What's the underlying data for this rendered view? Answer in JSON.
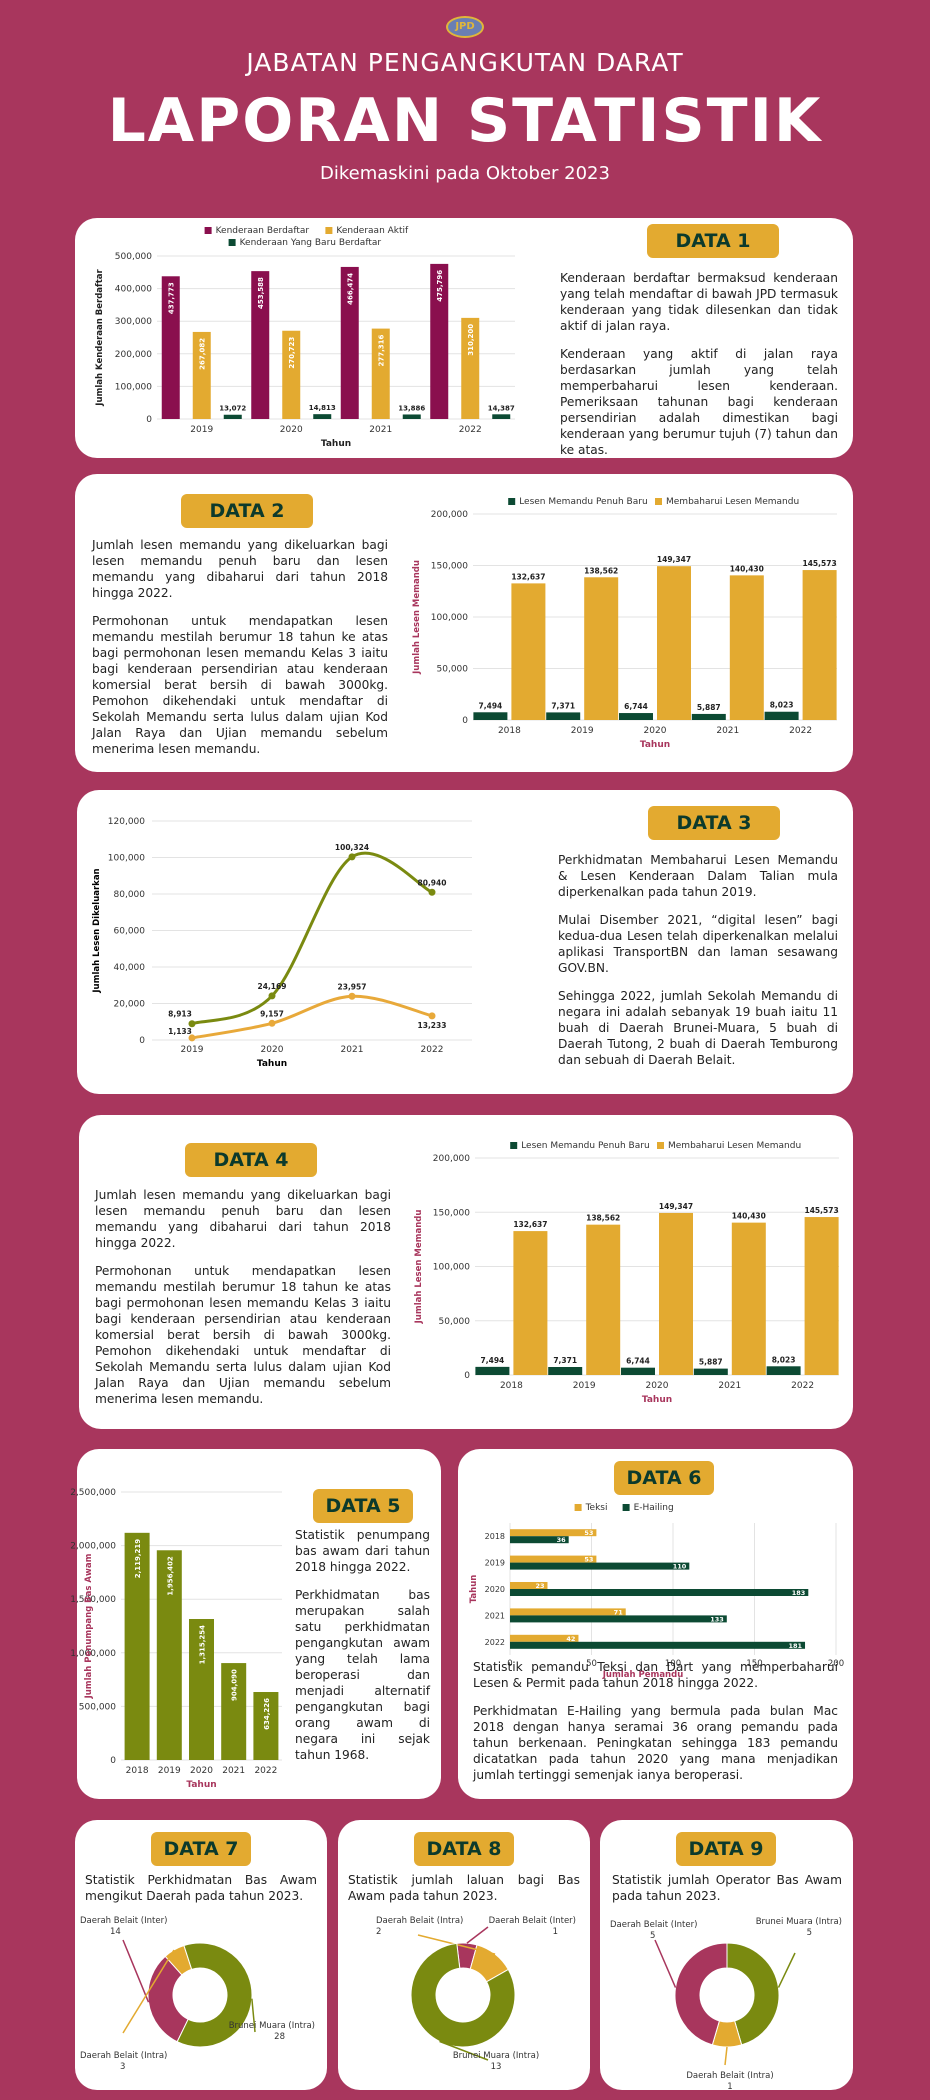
{
  "header": {
    "logo_text": "JPD",
    "supertitle": "JABATAN PENGANGKUTAN DARAT",
    "title": "LAPORAN STATISTIK",
    "updated": "Dikemaskini pada Oktober 2023"
  },
  "colors": {
    "background": "#a8365d",
    "maroon": "#8a0f4e",
    "gold": "#e3aa30",
    "green": "#0c4a33",
    "olive": "#7a8a10"
  },
  "sections": {
    "d1": {
      "label": "DATA 1",
      "paras": [
        "Kenderaan berdaftar bermaksud kenderaan yang telah mendaftar di bawah JPD termasuk kenderaan yang tidak dilesenkan dan tidak aktif di jalan raya.",
        "Kenderaan yang aktif di jalan raya berdasarkan jumlah yang telah memperbaharui lesen kenderaan. Pemeriksaan tahunan bagi kenderaan persendirian adalah dimestikan bagi kenderaan yang berumur tujuh (7) tahun dan ke atas."
      ]
    },
    "d2": {
      "label": "DATA 2",
      "paras": [
        "Jumlah lesen memandu yang dikeluarkan bagi lesen memandu penuh baru dan lesen memandu yang dibaharui dari tahun 2018 hingga 2022.",
        "Permohonan untuk mendapatkan lesen memandu mestilah berumur 18 tahun ke atas bagi permohonan lesen memandu Kelas 3 iaitu bagi kenderaan persendirian atau kenderaan komersial berat bersih di bawah 3000kg. Pemohon dikehendaki untuk mendaftar di Sekolah Memandu serta lulus dalam ujian Kod Jalan Raya dan Ujian memandu sebelum menerima lesen memandu."
      ]
    },
    "d3": {
      "label": "DATA 3",
      "paras": [
        "Perkhidmatan Membaharui Lesen Memandu & Lesen Kenderaan Dalam Talian mula diperkenalkan pada tahun 2019.",
        "Mulai Disember 2021, “digital lesen” bagi kedua-dua Lesen telah diperkenalkan melalui aplikasi TransportBN dan laman sesawang GOV.BN.",
        "Sehingga 2022, jumlah Sekolah Memandu di negara ini adalah sebanyak 19 buah iaitu 11 buah di Daerah Brunei-Muara, 5 buah di Daerah Tutong, 2 buah di Daerah Temburong dan sebuah di Daerah Belait."
      ]
    },
    "d4": {
      "label": "DATA 4",
      "paras": [
        "Jumlah lesen memandu yang dikeluarkan bagi lesen memandu penuh baru dan lesen memandu yang dibaharui dari tahun 2018 hingga 2022.",
        "Permohonan untuk mendapatkan lesen memandu mestilah berumur 18 tahun ke atas bagi permohonan lesen memandu Kelas 3 iaitu bagi kenderaan persendirian atau kenderaan komersial berat bersih di bawah 3000kg. Pemohon dikehendaki untuk mendaftar di Sekolah Memandu serta lulus dalam ujian Kod Jalan Raya dan Ujian memandu sebelum menerima lesen memandu."
      ]
    },
    "d5": {
      "label": "DATA 5",
      "paras": [
        "Statistik penumpang bas awam dari tahun 2018 hingga 2022.",
        "Perkhidmatan bas merupakan salah satu perkhidmatan pengangkutan awam yang telah lama beroperasi dan menjadi alternatif pengangkutan bagi orang awam di negara ini sejak tahun 1968."
      ]
    },
    "d6": {
      "label": "DATA 6",
      "paras": [
        "Statistik pemandu Teksi dan Dart yang memperbaharui Lesen & Permit pada tahun 2018 hingga 2022.",
        "Perkhidmatan E-Hailing yang bermula pada bulan Mac 2018 dengan hanya seramai 36 orang pemandu pada tahun berkenaan. Peningkatan sehingga 183 pemandu dicatatkan pada tahun 2020 yang mana menjadikan jumlah tertinggi semenjak ianya beroperasi."
      ]
    },
    "d7": {
      "label": "DATA 7",
      "paras": [
        "Statistik Perkhidmatan Bas Awam mengikut Daerah pada tahun 2023."
      ]
    },
    "d8": {
      "label": "DATA 8",
      "paras": [
        "Statistik jumlah laluan bagi Bas Awam pada tahun 2023."
      ]
    },
    "d9": {
      "label": "DATA 9",
      "paras": [
        "Statistik jumlah Operator Bas Awam pada tahun 2023."
      ]
    }
  },
  "chart_data": [
    {
      "id": "data1",
      "type": "bar",
      "categories": [
        "2019",
        "2020",
        "2021",
        "2022"
      ],
      "series": [
        {
          "name": "Kenderaan Berdaftar",
          "color": "#8a0f4e",
          "values": [
            437773,
            453588,
            466474,
            475796
          ],
          "labels": [
            "437,773",
            "453,588",
            "466,474",
            "475,796"
          ]
        },
        {
          "name": "Kenderaan Aktif",
          "color": "#e3aa30",
          "values": [
            267082,
            270723,
            277316,
            310200
          ],
          "labels": [
            "267,082",
            "270,723",
            "277,316",
            "310,200"
          ]
        },
        {
          "name": "Kenderaan Yang Baru Berdaftar",
          "color": "#0c4a33",
          "values": [
            13072,
            14813,
            13886,
            14387
          ],
          "labels": [
            "13,072",
            "14,813",
            "13,886",
            "14,387"
          ]
        }
      ],
      "ylim": [
        0,
        500000
      ],
      "yticks": [
        "0",
        "100,000",
        "200,000",
        "300,000",
        "400,000",
        "500,000"
      ],
      "xlabel": "Tahun",
      "ylabel": "Jumlah Kenderaan Berdaftar",
      "legend": "top"
    },
    {
      "id": "data2",
      "type": "bar",
      "categories": [
        "2018",
        "2019",
        "2020",
        "2021",
        "2022"
      ],
      "series": [
        {
          "name": "Lesen Memandu Penuh Baru",
          "color": "#0c4a33",
          "values": [
            7494,
            7371,
            6744,
            5887,
            8023
          ],
          "labels": [
            "7,494",
            "7,371",
            "6,744",
            "5,887",
            "8,023"
          ]
        },
        {
          "name": "Membaharui Lesen Memandu",
          "color": "#e3aa30",
          "values": [
            132637,
            138562,
            149347,
            140430,
            145573
          ],
          "labels": [
            "132,637",
            "138,562",
            "149,347",
            "140,430",
            "145,573"
          ]
        }
      ],
      "ylim": [
        0,
        200000
      ],
      "yticks": [
        "0",
        "50,000",
        "100,000",
        "150,000",
        "200,000"
      ],
      "xlabel": "Tahun",
      "ylabel": "Jumlah Lesen Memandu",
      "legend": "top"
    },
    {
      "id": "data3",
      "type": "line",
      "categories": [
        "2019",
        "2020",
        "2021",
        "2022"
      ],
      "series": [
        {
          "name": "",
          "color": "#7a8a10",
          "values": [
            8913,
            24169,
            100324,
            80940
          ],
          "labels": [
            "8,913",
            "24,169",
            "100,324",
            "80,940"
          ]
        },
        {
          "name": "",
          "color": "#e8a93a",
          "values": [
            1133,
            9157,
            23957,
            13233
          ],
          "labels": [
            "1,133",
            "9,157",
            "23,957",
            "13,233"
          ]
        }
      ],
      "ylim": [
        0,
        120000
      ],
      "yticks": [
        "0",
        "20,000",
        "40,000",
        "60,000",
        "80,000",
        "100,000",
        "120,000"
      ],
      "xlabel": "Tahun",
      "ylabel": "Jumlah Lesen Dikeluarkan"
    },
    {
      "id": "data4",
      "type": "bar",
      "categories": [
        "2018",
        "2019",
        "2020",
        "2021",
        "2022"
      ],
      "series": [
        {
          "name": "Lesen Memandu Penuh Baru",
          "color": "#0c4a33",
          "values": [
            7494,
            7371,
            6744,
            5887,
            8023
          ],
          "labels": [
            "7,494",
            "7,371",
            "6,744",
            "5,887",
            "8,023"
          ]
        },
        {
          "name": "Membaharui Lesen Memandu",
          "color": "#e3aa30",
          "values": [
            132637,
            138562,
            149347,
            140430,
            145573
          ],
          "labels": [
            "132,637",
            "138,562",
            "149,347",
            "140,430",
            "145,573"
          ]
        }
      ],
      "ylim": [
        0,
        200000
      ],
      "yticks": [
        "0",
        "50,000",
        "100,000",
        "150,000",
        "200,000"
      ],
      "xlabel": "Tahun",
      "ylabel": "Jumlah Lesen Memandu",
      "legend": "top"
    },
    {
      "id": "data5",
      "type": "bar",
      "categories": [
        "2018",
        "2019",
        "2020",
        "2021",
        "2022"
      ],
      "series": [
        {
          "name": "",
          "color": "#7a8a10",
          "values": [
            2119219,
            1956402,
            1315254,
            904090,
            634226
          ],
          "labels": [
            "2,119,219",
            "1,956,402",
            "1,315,254",
            "904,090",
            "634,226"
          ]
        }
      ],
      "ylim": [
        0,
        2500000
      ],
      "yticks": [
        "0",
        "500,000",
        "1,000,000",
        "1,500,000",
        "2,000,000",
        "2,500,000"
      ],
      "xlabel": "Tahun",
      "ylabel": "Jumlah Penumpang Bas Awam"
    },
    {
      "id": "data6",
      "type": "bar",
      "orientation": "horizontal",
      "categories": [
        "2018",
        "2019",
        "2020",
        "2021",
        "2022"
      ],
      "series": [
        {
          "name": "Teksi",
          "color": "#e3aa30",
          "values": [
            53,
            53,
            23,
            71,
            42
          ],
          "labels": [
            "53",
            "53",
            "23",
            "71",
            "42"
          ]
        },
        {
          "name": "E-Hailing",
          "color": "#0c4a33",
          "values": [
            36,
            110,
            183,
            133,
            181
          ],
          "labels": [
            "36",
            "110",
            "183",
            "133",
            "181"
          ]
        }
      ],
      "xlim": [
        0,
        200
      ],
      "xticks": [
        "0",
        "50",
        "100",
        "150",
        "200"
      ],
      "xlabel": "Jumlah Pemandu",
      "ylabel": "Tahun",
      "legend": "top"
    },
    {
      "id": "data7",
      "type": "pie",
      "slices": [
        {
          "label": "Daerah Belait (Inter)",
          "value": 14,
          "color": "#a8365d"
        },
        {
          "label": "Daerah Belait (Intra)",
          "value": 3,
          "color": "#e3aa30"
        },
        {
          "label": "Brunei Muara (Intra)",
          "value": 28,
          "color": "#7a8a10"
        }
      ]
    },
    {
      "id": "data8",
      "type": "pie",
      "slices": [
        {
          "label": "Daerah Belait (Inter)",
          "value": 1,
          "color": "#a8365d"
        },
        {
          "label": "Daerah Belait (Intra)",
          "value": 2,
          "color": "#e3aa30"
        },
        {
          "label": "Brunei Muara (Intra)",
          "value": 13,
          "color": "#7a8a10"
        }
      ]
    },
    {
      "id": "data9",
      "type": "pie",
      "slices": [
        {
          "label": "Brunei Muara (Intra)",
          "value": 5,
          "color": "#7a8a10"
        },
        {
          "label": "Daerah Belait (Intra)",
          "value": 1,
          "color": "#e3aa30"
        },
        {
          "label": "Daerah Belait (Inter)",
          "value": 5,
          "color": "#a8365d"
        }
      ]
    }
  ]
}
